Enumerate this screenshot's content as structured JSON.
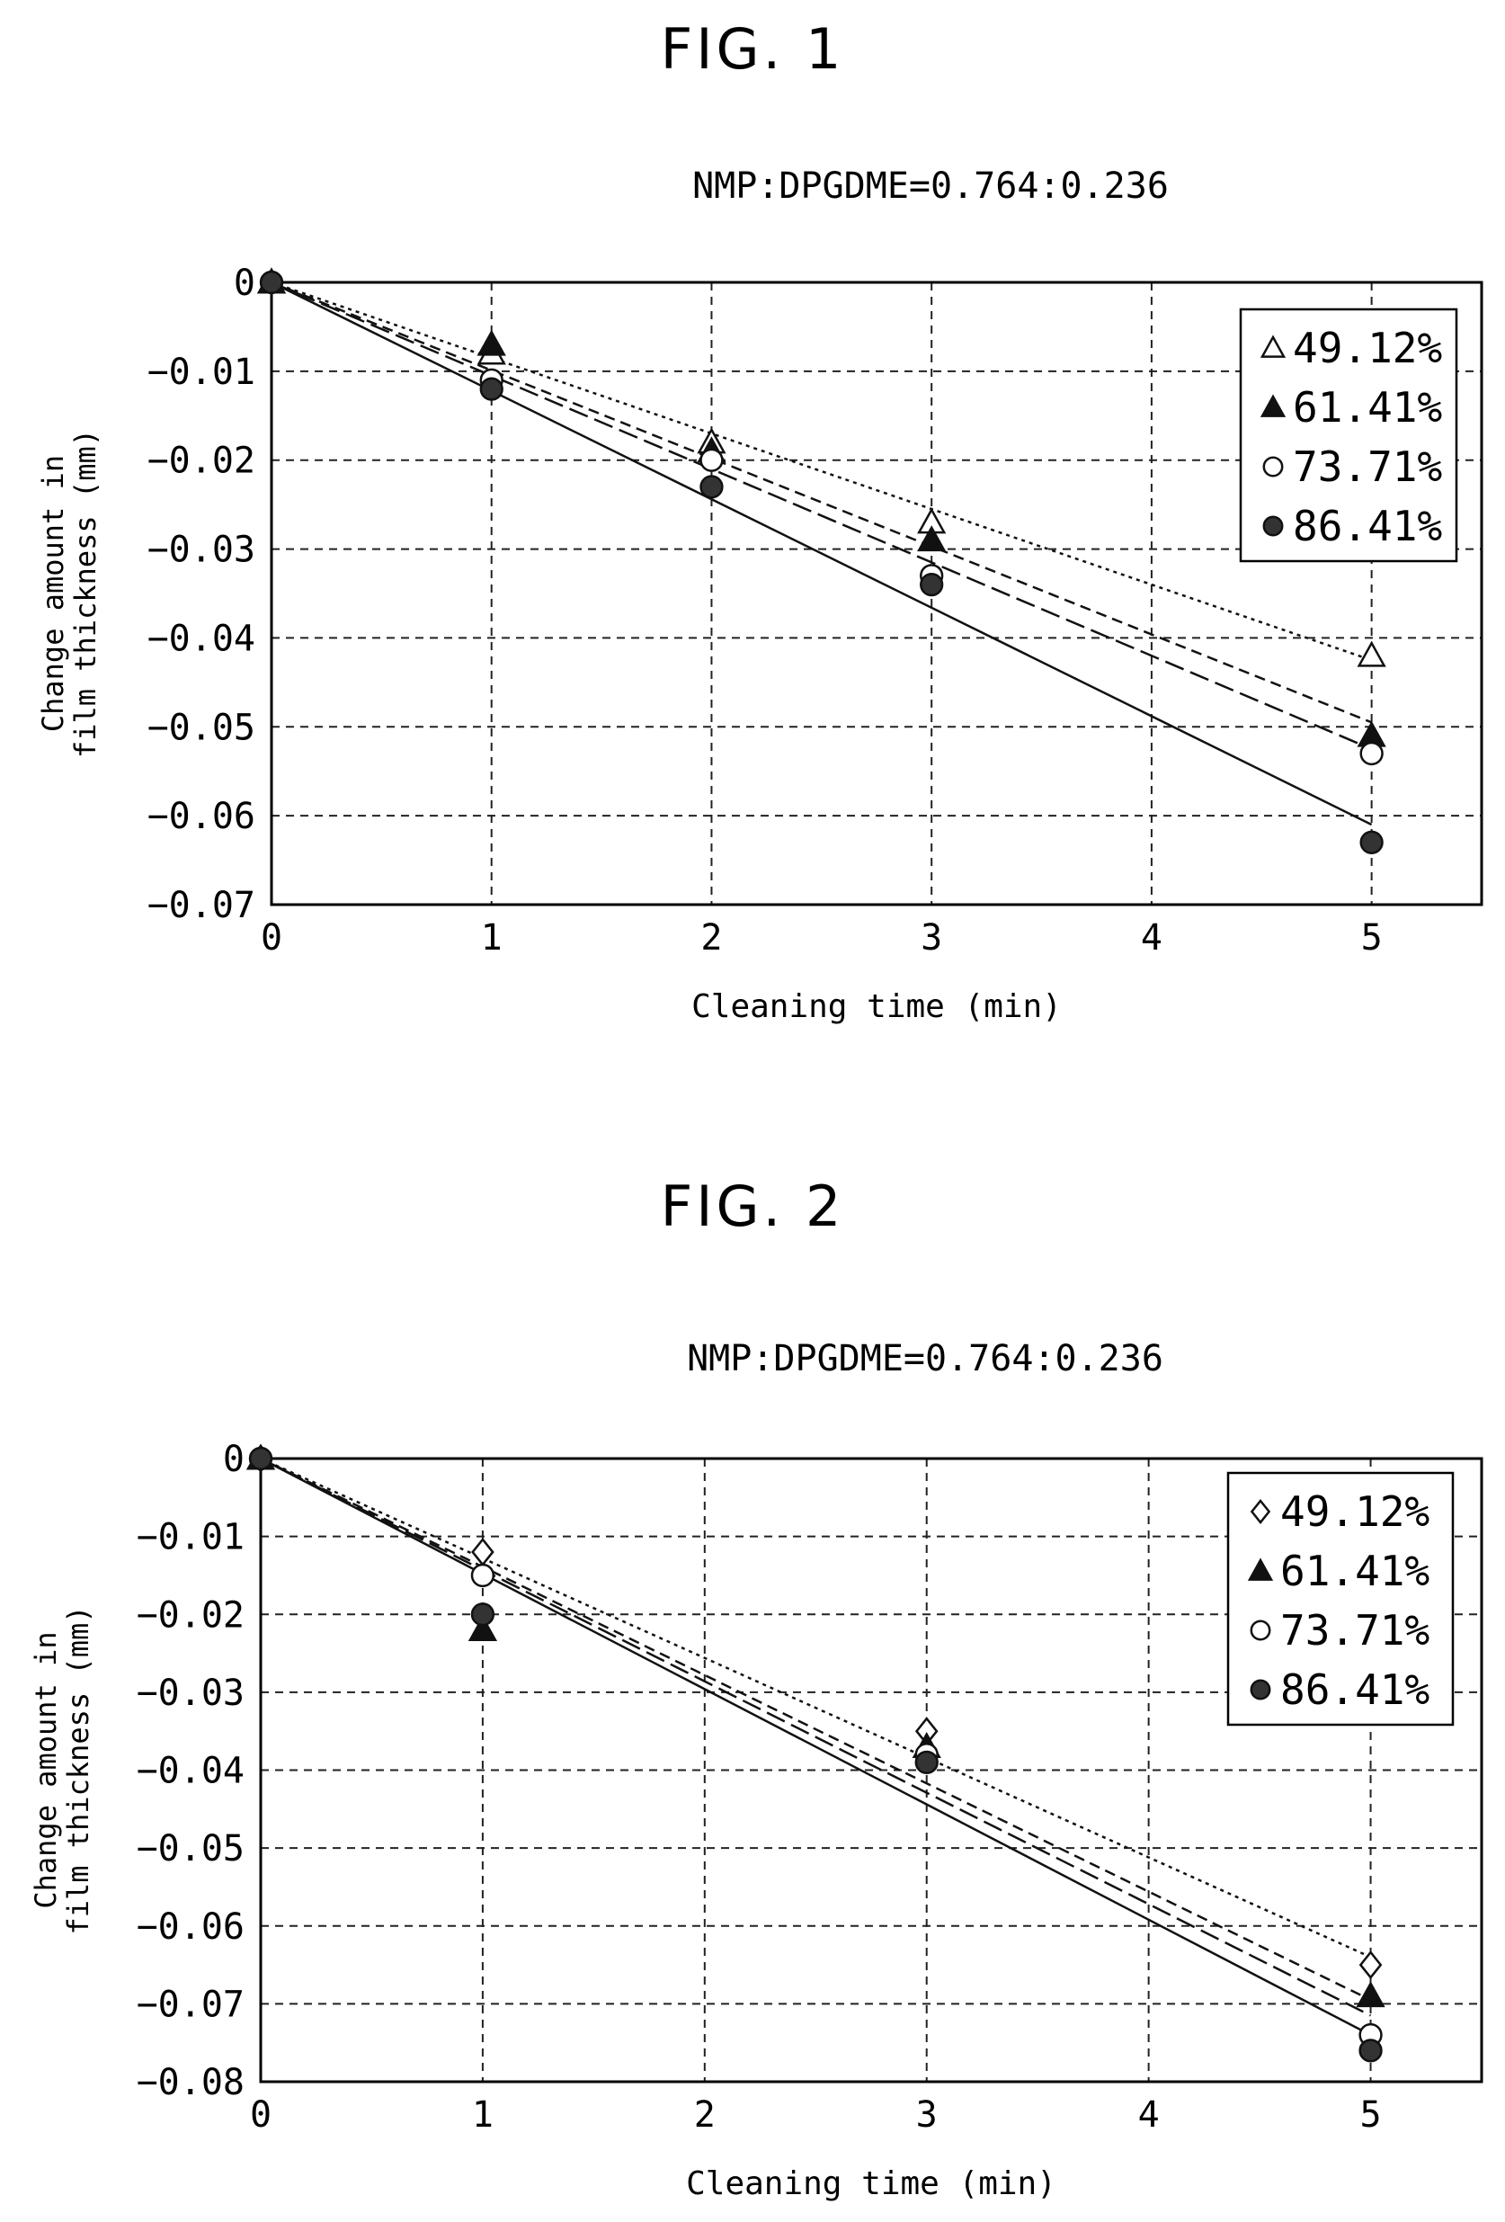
{
  "figures": [
    {
      "label": "FIG. 1",
      "chart_data": {
        "type": "scatter",
        "title": "NMP:DPGDME=0.764:0.236",
        "xlabel": "Cleaning time (min)",
        "ylabel_lines": [
          "Change amount in",
          "film thickness (mm)"
        ],
        "xlim": [
          0,
          5.5
        ],
        "ylim": [
          -0.07,
          0
        ],
        "xticks": [
          0,
          1,
          2,
          3,
          4,
          5
        ],
        "xtick_labels": [
          "0",
          "1",
          "2",
          "3",
          "4",
          "5"
        ],
        "yticks": [
          0,
          -0.01,
          -0.02,
          -0.03,
          -0.04,
          -0.05,
          -0.06,
          -0.07
        ],
        "ytick_labels": [
          "0",
          "-0.01",
          "-0.02",
          "-0.03",
          "-0.04",
          "-0.05",
          "-0.06",
          "-0.07"
        ],
        "grid": true,
        "legend_position": "top-right",
        "series": [
          {
            "name": "49.12%",
            "marker": "triangle-open",
            "line": "dotted",
            "x": [
              0,
              1,
              2,
              3,
              5
            ],
            "y": [
              0,
              -0.008,
              -0.018,
              -0.027,
              -0.042
            ],
            "fit_slope": -0.0085
          },
          {
            "name": "61.41%",
            "marker": "triangle-filled",
            "line": "short-dash",
            "x": [
              0,
              1,
              2,
              3,
              5
            ],
            "y": [
              0,
              -0.007,
              -0.019,
              -0.029,
              -0.051
            ],
            "fit_slope": -0.0099
          },
          {
            "name": "73.71%",
            "marker": "circle-open",
            "line": "long-dash",
            "x": [
              0,
              1,
              2,
              3,
              5
            ],
            "y": [
              0,
              -0.011,
              -0.02,
              -0.033,
              -0.053
            ],
            "fit_slope": -0.0105
          },
          {
            "name": "86.41%",
            "marker": "circle-filled",
            "line": "solid",
            "x": [
              0,
              1,
              2,
              3,
              5
            ],
            "y": [
              0,
              -0.012,
              -0.023,
              -0.034,
              -0.063
            ],
            "fit_slope": -0.0122
          }
        ]
      }
    },
    {
      "label": "FIG. 2",
      "chart_data": {
        "type": "scatter",
        "title": "NMP:DPGDME=0.764:0.236",
        "xlabel": "Cleaning time (min)",
        "ylabel_lines": [
          "Change amount in",
          "film thickness (mm)"
        ],
        "xlim": [
          0,
          5.5
        ],
        "ylim": [
          -0.08,
          0
        ],
        "xticks": [
          0,
          1,
          2,
          3,
          4,
          5
        ],
        "xtick_labels": [
          "0",
          "1",
          "2",
          "3",
          "4",
          "5"
        ],
        "yticks": [
          0,
          -0.01,
          -0.02,
          -0.03,
          -0.04,
          -0.05,
          -0.06,
          -0.07,
          -0.08
        ],
        "ytick_labels": [
          "0",
          "-0.01",
          "-0.02",
          "-0.03",
          "-0.04",
          "-0.05",
          "-0.06",
          "-0.07",
          "-0.08"
        ],
        "grid": true,
        "legend_position": "top-right",
        "series": [
          {
            "name": "49.12%",
            "marker": "diamond-open",
            "line": "dotted",
            "x": [
              0,
              1,
              3,
              5
            ],
            "y": [
              0,
              -0.012,
              -0.035,
              -0.065
            ],
            "fit_slope": -0.0128
          },
          {
            "name": "61.41%",
            "marker": "triangle-filled",
            "line": "short-dash",
            "x": [
              0,
              1,
              3,
              5
            ],
            "y": [
              0,
              -0.022,
              -0.037,
              -0.069
            ],
            "fit_slope": -0.0139
          },
          {
            "name": "73.71%",
            "marker": "circle-open",
            "line": "long-dash",
            "x": [
              0,
              1,
              3,
              5
            ],
            "y": [
              0,
              -0.015,
              -0.038,
              -0.074
            ],
            "fit_slope": -0.0143
          },
          {
            "name": "86.41%",
            "marker": "circle-filled",
            "line": "solid",
            "x": [
              0,
              1,
              3,
              5
            ],
            "y": [
              0,
              -0.02,
              -0.039,
              -0.076
            ],
            "fit_slope": -0.0148
          }
        ]
      }
    }
  ]
}
